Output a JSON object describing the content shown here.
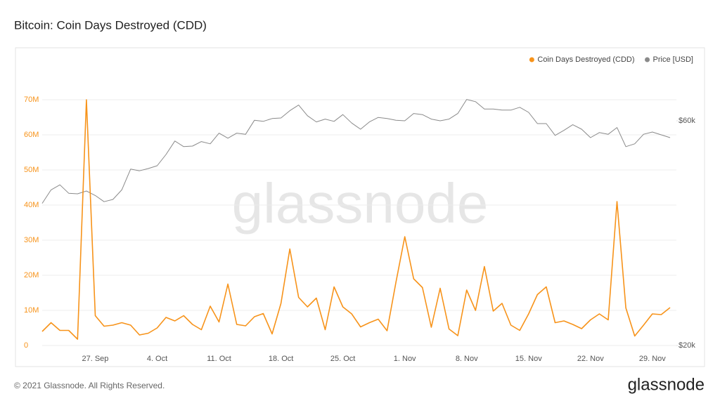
{
  "chart_data": {
    "type": "line",
    "title": "Bitcoin: Coin Days Destroyed (CDD)",
    "watermark": "glassnode",
    "footer": "© 2021 Glassnode. All Rights Reserved.",
    "logo": "glassnode",
    "categories": [
      null,
      null,
      null,
      null,
      null,
      null,
      "27. Sep",
      null,
      null,
      null,
      null,
      null,
      null,
      "4. Oct",
      null,
      null,
      null,
      null,
      null,
      null,
      "11. Oct",
      null,
      null,
      null,
      null,
      null,
      null,
      "18. Oct",
      null,
      null,
      null,
      null,
      null,
      null,
      "25. Oct",
      null,
      null,
      null,
      null,
      null,
      null,
      "1. Nov",
      null,
      null,
      null,
      null,
      null,
      null,
      "8. Nov",
      null,
      null,
      null,
      null,
      null,
      null,
      "15. Nov",
      null,
      null,
      null,
      null,
      null,
      null,
      "22. Nov",
      null,
      null,
      null,
      null,
      null,
      null,
      "29. Nov",
      null,
      null
    ],
    "series": [
      {
        "name": "Coin Days Destroyed (CDD)",
        "color": "#f7931a",
        "values": [
          4000000,
          6500000,
          4300000,
          4300000,
          1800000,
          70000000,
          8500000,
          5500000,
          5800000,
          6500000,
          5800000,
          3000000,
          3500000,
          5000000,
          8000000,
          7000000,
          8500000,
          6000000,
          4500000,
          11200000,
          6700000,
          17500000,
          6000000,
          5600000,
          8200000,
          9100000,
          3300000,
          12000000,
          27500000,
          13700000,
          11000000,
          13500000,
          4500000,
          16700000,
          11000000,
          9000000,
          5300000,
          6500000,
          7500000,
          4200000,
          18000000,
          31000000,
          19000000,
          16500000,
          5200000,
          16300000,
          4700000,
          2800000,
          15800000,
          10000000,
          22500000,
          9800000,
          12000000,
          5800000,
          4300000,
          9000000,
          14500000,
          16700000,
          6500000,
          7000000,
          6000000,
          4800000,
          7300000,
          9000000,
          7300000,
          41000000,
          10700000,
          2700000,
          5800000,
          9000000,
          8800000,
          10800000
        ]
      },
      {
        "name": "Price [USD]",
        "color": "#8a8a8a",
        "axis": "y2",
        "values": [
          45300,
          47700,
          48600,
          47100,
          47000,
          47500,
          46700,
          45600,
          46000,
          47700,
          51400,
          51100,
          51500,
          52000,
          54000,
          56400,
          55400,
          55500,
          56300,
          55900,
          57800,
          56900,
          57800,
          57600,
          60100,
          59900,
          60400,
          60500,
          61800,
          62800,
          60900,
          59800,
          60300,
          59900,
          61100,
          59600,
          58500,
          59800,
          60600,
          60400,
          60100,
          60000,
          61300,
          61100,
          60300,
          60000,
          60300,
          61300,
          63800,
          63400,
          62100,
          62100,
          61900,
          61900,
          62400,
          61500,
          59500,
          59500,
          57400,
          58300,
          59300,
          58500,
          57000,
          57900,
          57600,
          58800,
          55400,
          55900,
          57600,
          58000,
          57500,
          57000
        ]
      }
    ],
    "ylim": [
      0,
      80000000
    ],
    "yticks": [
      0,
      {
        "value": 10000000,
        "label": "10M"
      },
      {
        "value": 20000000,
        "label": "20M"
      },
      {
        "value": 30000000,
        "label": "30M"
      },
      {
        "value": 40000000,
        "label": "40M"
      },
      {
        "value": 50000000,
        "label": "50M"
      },
      {
        "value": 60000000,
        "label": "60M"
      },
      {
        "value": 70000000,
        "label": "70M"
      }
    ],
    "y2lim": [
      20000,
      70000
    ],
    "y2ticks": [
      {
        "value": 20000,
        "label": "$20k"
      },
      {
        "value": 60000,
        "label": "$60k"
      }
    ],
    "grid": true
  }
}
